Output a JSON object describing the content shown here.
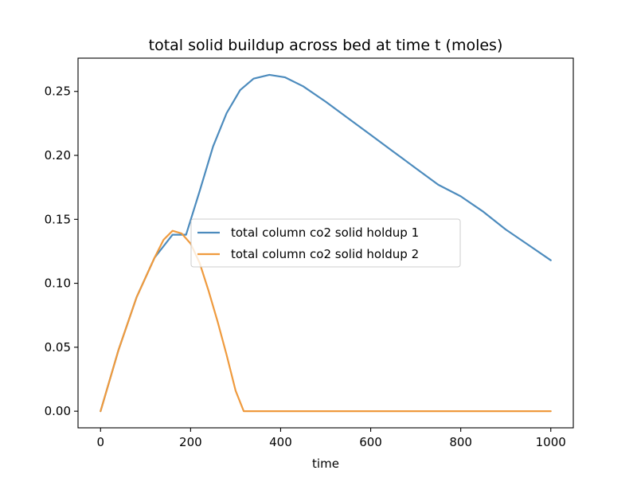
{
  "chart_data": {
    "type": "line",
    "title": "total solid buildup across bed at time t (moles)",
    "xlabel": "time",
    "ylabel": "",
    "xlim": [
      -50,
      1050
    ],
    "ylim": [
      -0.013,
      0.276
    ],
    "xticks": [
      0,
      200,
      400,
      600,
      800,
      1000
    ],
    "xtick_labels": [
      "0",
      "200",
      "400",
      "600",
      "800",
      "1000"
    ],
    "yticks": [
      0.0,
      0.05,
      0.1,
      0.15,
      0.2,
      0.25
    ],
    "ytick_labels": [
      "0.00",
      "0.05",
      "0.10",
      "0.15",
      "0.20",
      "0.25"
    ],
    "grid": false,
    "legend_position": "center",
    "series": [
      {
        "name": "total column co2 solid holdup 1",
        "color": "#4c8bbd",
        "x": [
          0,
          40,
          80,
          120,
          160,
          190,
          220,
          250,
          280,
          310,
          340,
          375,
          410,
          450,
          500,
          550,
          600,
          650,
          700,
          750,
          800,
          850,
          900,
          950,
          1000
        ],
        "y": [
          0.0,
          0.048,
          0.089,
          0.12,
          0.138,
          0.138,
          0.172,
          0.207,
          0.233,
          0.251,
          0.26,
          0.263,
          0.261,
          0.254,
          0.242,
          0.229,
          0.216,
          0.203,
          0.19,
          0.177,
          0.168,
          0.156,
          0.142,
          0.13,
          0.118
        ]
      },
      {
        "name": "total column co2 solid holdup 2",
        "color": "#ef9a3d",
        "x": [
          0,
          40,
          80,
          120,
          140,
          160,
          180,
          200,
          220,
          240,
          260,
          280,
          300,
          318,
          400,
          600,
          800,
          1000
        ],
        "y": [
          0.0,
          0.048,
          0.089,
          0.12,
          0.134,
          0.141,
          0.139,
          0.131,
          0.116,
          0.094,
          0.07,
          0.044,
          0.016,
          0.0,
          0.0,
          0.0,
          0.0,
          0.0
        ]
      }
    ]
  }
}
